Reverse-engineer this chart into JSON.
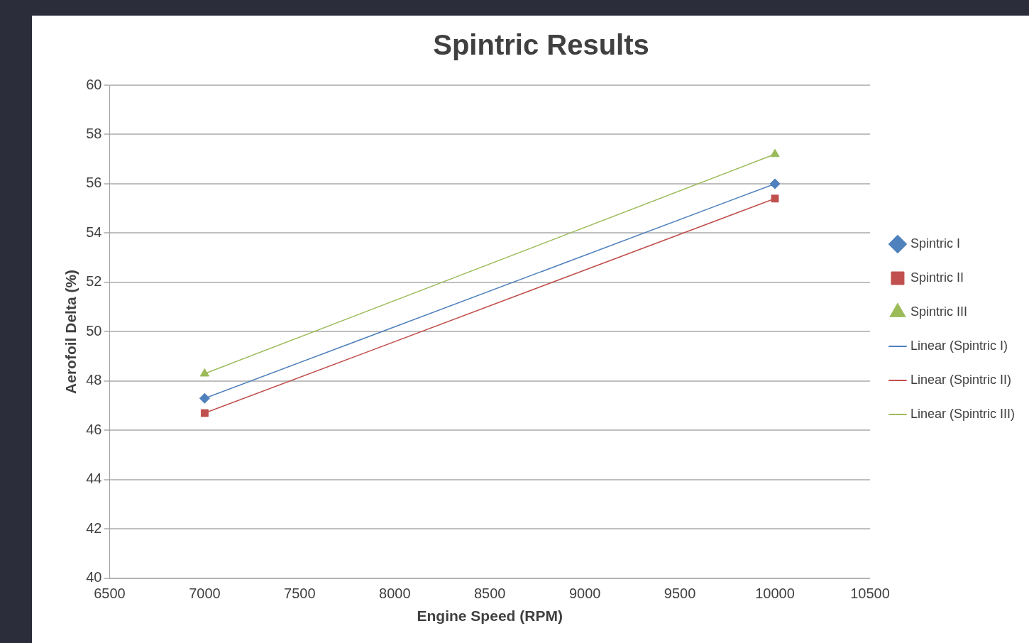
{
  "chart_data": {
    "type": "scatter",
    "title": "Spintric Results",
    "xlabel": "Engine Speed (RPM)",
    "ylabel": "Aerofoil Delta (%)",
    "x": [
      7000,
      10000
    ],
    "series": [
      {
        "name": "Spintric I",
        "color": "#4f81bd",
        "marker": "diamond",
        "values": [
          47.3,
          56.0
        ]
      },
      {
        "name": "Spintric II",
        "color": "#c0504d",
        "marker": "square",
        "values": [
          46.7,
          55.4
        ]
      },
      {
        "name": "Spintric III",
        "color": "#9bbb59",
        "marker": "triangle",
        "values": [
          48.3,
          57.2
        ]
      },
      {
        "name": "Linear (Spintric I)",
        "type": "line",
        "color": "#4f81bd",
        "marker": "none",
        "values": [
          47.3,
          56.0
        ]
      },
      {
        "name": "Linear (Spintric II)",
        "type": "line",
        "color": "#c0504d",
        "marker": "none",
        "values": [
          46.7,
          55.4
        ]
      },
      {
        "name": "Linear (Spintric III)",
        "type": "line",
        "color": "#9bbb59",
        "marker": "none",
        "values": [
          48.3,
          57.2
        ]
      }
    ],
    "xlim": [
      6500,
      10500
    ],
    "xticks": [
      6500,
      7000,
      7500,
      8000,
      8500,
      9000,
      9500,
      10000,
      10500
    ],
    "ylim": [
      40,
      60
    ],
    "yticks": [
      40,
      42,
      44,
      46,
      48,
      50,
      52,
      54,
      56,
      58,
      60
    ],
    "grid": "y",
    "legend": "right"
  }
}
